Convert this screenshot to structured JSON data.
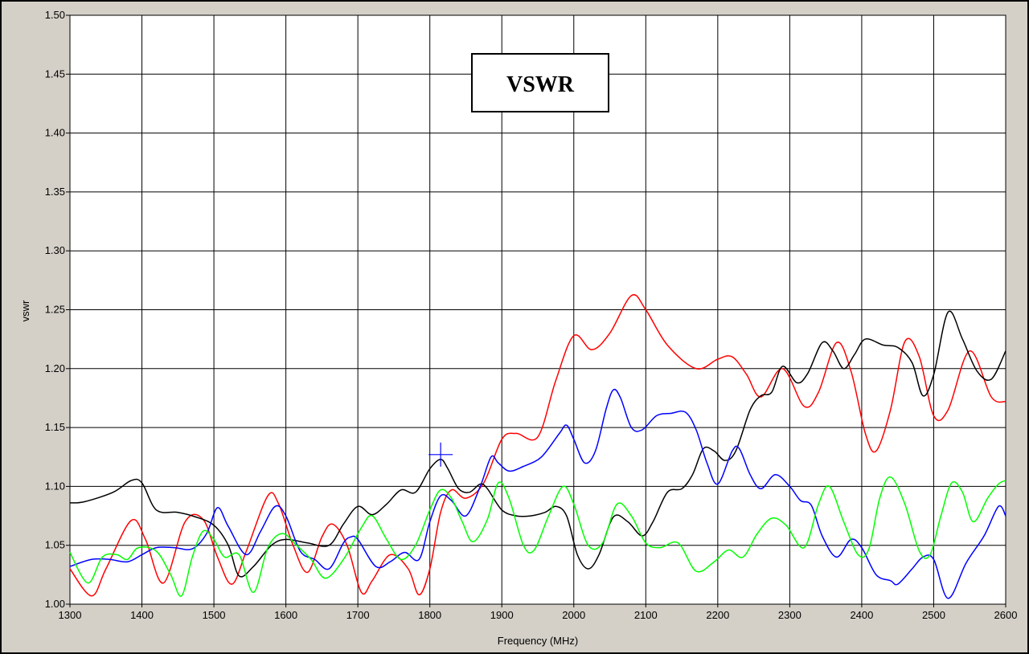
{
  "chart_data": {
    "type": "line",
    "title": "VSWR",
    "xlabel": "Frequency (MHz)",
    "ylabel": "vswr",
    "xlim": [
      1300,
      2600
    ],
    "ylim": [
      1.0,
      1.5
    ],
    "grid": true,
    "xticks": [
      "1300",
      "1400",
      "1500",
      "1600",
      "1700",
      "1800",
      "1900",
      "2000",
      "2100",
      "2200",
      "2300",
      "2400",
      "2500",
      "2600"
    ],
    "yticks": [
      "1.00",
      "1.05",
      "1.10",
      "1.15",
      "1.20",
      "1.25",
      "1.30",
      "1.35",
      "1.40",
      "1.45",
      "1.50"
    ],
    "marker": {
      "x": 1815,
      "y": 1.127,
      "color": "#0000ff"
    },
    "series": [
      {
        "color": "#ff0000",
        "points": [
          [
            1300,
            1.03
          ],
          [
            1330,
            1.007
          ],
          [
            1350,
            1.03
          ],
          [
            1385,
            1.071
          ],
          [
            1405,
            1.055
          ],
          [
            1430,
            1.018
          ],
          [
            1460,
            1.07
          ],
          [
            1485,
            1.072
          ],
          [
            1505,
            1.04
          ],
          [
            1525,
            1.017
          ],
          [
            1545,
            1.045
          ],
          [
            1575,
            1.092
          ],
          [
            1590,
            1.085
          ],
          [
            1610,
            1.05
          ],
          [
            1630,
            1.027
          ],
          [
            1650,
            1.057
          ],
          [
            1665,
            1.068
          ],
          [
            1685,
            1.05
          ],
          [
            1705,
            1.01
          ],
          [
            1720,
            1.02
          ],
          [
            1745,
            1.042
          ],
          [
            1770,
            1.03
          ],
          [
            1785,
            1.008
          ],
          [
            1800,
            1.03
          ],
          [
            1815,
            1.078
          ],
          [
            1830,
            1.097
          ],
          [
            1850,
            1.09
          ],
          [
            1875,
            1.103
          ],
          [
            1900,
            1.14
          ],
          [
            1920,
            1.145
          ],
          [
            1950,
            1.142
          ],
          [
            1975,
            1.19
          ],
          [
            2000,
            1.228
          ],
          [
            2025,
            1.216
          ],
          [
            2050,
            1.23
          ],
          [
            2080,
            1.262
          ],
          [
            2100,
            1.25
          ],
          [
            2130,
            1.22
          ],
          [
            2170,
            1.2
          ],
          [
            2200,
            1.208
          ],
          [
            2220,
            1.21
          ],
          [
            2240,
            1.195
          ],
          [
            2260,
            1.176
          ],
          [
            2290,
            1.2
          ],
          [
            2320,
            1.168
          ],
          [
            2340,
            1.18
          ],
          [
            2365,
            1.222
          ],
          [
            2385,
            1.198
          ],
          [
            2405,
            1.145
          ],
          [
            2420,
            1.13
          ],
          [
            2440,
            1.165
          ],
          [
            2460,
            1.223
          ],
          [
            2480,
            1.21
          ],
          [
            2500,
            1.16
          ],
          [
            2520,
            1.165
          ],
          [
            2550,
            1.215
          ],
          [
            2580,
            1.176
          ],
          [
            2600,
            1.172
          ]
        ]
      },
      {
        "color": "#000000",
        "points": [
          [
            1300,
            1.086
          ],
          [
            1320,
            1.087
          ],
          [
            1360,
            1.095
          ],
          [
            1385,
            1.105
          ],
          [
            1400,
            1.103
          ],
          [
            1420,
            1.08
          ],
          [
            1450,
            1.078
          ],
          [
            1475,
            1.074
          ],
          [
            1500,
            1.067
          ],
          [
            1520,
            1.05
          ],
          [
            1535,
            1.024
          ],
          [
            1555,
            1.032
          ],
          [
            1580,
            1.05
          ],
          [
            1600,
            1.055
          ],
          [
            1630,
            1.052
          ],
          [
            1660,
            1.05
          ],
          [
            1680,
            1.068
          ],
          [
            1700,
            1.083
          ],
          [
            1720,
            1.076
          ],
          [
            1740,
            1.085
          ],
          [
            1760,
            1.097
          ],
          [
            1780,
            1.095
          ],
          [
            1800,
            1.115
          ],
          [
            1815,
            1.123
          ],
          [
            1825,
            1.115
          ],
          [
            1840,
            1.098
          ],
          [
            1855,
            1.095
          ],
          [
            1870,
            1.102
          ],
          [
            1880,
            1.098
          ],
          [
            1900,
            1.08
          ],
          [
            1920,
            1.075
          ],
          [
            1940,
            1.075
          ],
          [
            1960,
            1.078
          ],
          [
            1975,
            1.083
          ],
          [
            1990,
            1.075
          ],
          [
            2005,
            1.042
          ],
          [
            2020,
            1.03
          ],
          [
            2035,
            1.042
          ],
          [
            2055,
            1.074
          ],
          [
            2075,
            1.07
          ],
          [
            2095,
            1.058
          ],
          [
            2110,
            1.07
          ],
          [
            2130,
            1.095
          ],
          [
            2150,
            1.098
          ],
          [
            2165,
            1.11
          ],
          [
            2180,
            1.132
          ],
          [
            2195,
            1.13
          ],
          [
            2210,
            1.122
          ],
          [
            2225,
            1.13
          ],
          [
            2245,
            1.165
          ],
          [
            2260,
            1.177
          ],
          [
            2275,
            1.18
          ],
          [
            2290,
            1.202
          ],
          [
            2310,
            1.188
          ],
          [
            2325,
            1.196
          ],
          [
            2345,
            1.222
          ],
          [
            2360,
            1.215
          ],
          [
            2375,
            1.2
          ],
          [
            2390,
            1.212
          ],
          [
            2405,
            1.225
          ],
          [
            2430,
            1.22
          ],
          [
            2450,
            1.218
          ],
          [
            2470,
            1.205
          ],
          [
            2485,
            1.177
          ],
          [
            2500,
            1.195
          ],
          [
            2520,
            1.248
          ],
          [
            2540,
            1.225
          ],
          [
            2560,
            1.198
          ],
          [
            2580,
            1.191
          ],
          [
            2600,
            1.215
          ]
        ]
      },
      {
        "color": "#0000ff",
        "points": [
          [
            1300,
            1.032
          ],
          [
            1330,
            1.038
          ],
          [
            1355,
            1.038
          ],
          [
            1380,
            1.036
          ],
          [
            1400,
            1.042
          ],
          [
            1420,
            1.048
          ],
          [
            1445,
            1.048
          ],
          [
            1470,
            1.047
          ],
          [
            1490,
            1.06
          ],
          [
            1505,
            1.082
          ],
          [
            1520,
            1.066
          ],
          [
            1545,
            1.042
          ],
          [
            1565,
            1.062
          ],
          [
            1585,
            1.083
          ],
          [
            1600,
            1.075
          ],
          [
            1620,
            1.045
          ],
          [
            1640,
            1.038
          ],
          [
            1660,
            1.03
          ],
          [
            1680,
            1.052
          ],
          [
            1690,
            1.057
          ],
          [
            1700,
            1.055
          ],
          [
            1725,
            1.032
          ],
          [
            1745,
            1.036
          ],
          [
            1765,
            1.044
          ],
          [
            1785,
            1.038
          ],
          [
            1800,
            1.07
          ],
          [
            1815,
            1.092
          ],
          [
            1830,
            1.088
          ],
          [
            1850,
            1.075
          ],
          [
            1870,
            1.1
          ],
          [
            1885,
            1.125
          ],
          [
            1895,
            1.12
          ],
          [
            1910,
            1.113
          ],
          [
            1930,
            1.117
          ],
          [
            1955,
            1.125
          ],
          [
            1980,
            1.145
          ],
          [
            1990,
            1.152
          ],
          [
            2000,
            1.14
          ],
          [
            2015,
            1.12
          ],
          [
            2030,
            1.13
          ],
          [
            2045,
            1.166
          ],
          [
            2055,
            1.182
          ],
          [
            2065,
            1.175
          ],
          [
            2080,
            1.15
          ],
          [
            2095,
            1.148
          ],
          [
            2115,
            1.16
          ],
          [
            2135,
            1.162
          ],
          [
            2155,
            1.163
          ],
          [
            2170,
            1.148
          ],
          [
            2185,
            1.12
          ],
          [
            2200,
            1.102
          ],
          [
            2220,
            1.13
          ],
          [
            2230,
            1.132
          ],
          [
            2245,
            1.11
          ],
          [
            2260,
            1.098
          ],
          [
            2280,
            1.11
          ],
          [
            2300,
            1.1
          ],
          [
            2315,
            1.088
          ],
          [
            2330,
            1.084
          ],
          [
            2345,
            1.058
          ],
          [
            2365,
            1.04
          ],
          [
            2385,
            1.055
          ],
          [
            2400,
            1.048
          ],
          [
            2420,
            1.025
          ],
          [
            2440,
            1.02
          ],
          [
            2450,
            1.017
          ],
          [
            2470,
            1.03
          ],
          [
            2485,
            1.04
          ],
          [
            2500,
            1.038
          ],
          [
            2520,
            1.005
          ],
          [
            2545,
            1.035
          ],
          [
            2570,
            1.058
          ],
          [
            2590,
            1.083
          ],
          [
            2600,
            1.075
          ]
        ]
      },
      {
        "color": "#00ff00",
        "points": [
          [
            1300,
            1.044
          ],
          [
            1325,
            1.018
          ],
          [
            1345,
            1.04
          ],
          [
            1365,
            1.042
          ],
          [
            1380,
            1.038
          ],
          [
            1395,
            1.048
          ],
          [
            1420,
            1.045
          ],
          [
            1440,
            1.025
          ],
          [
            1455,
            1.007
          ],
          [
            1470,
            1.04
          ],
          [
            1485,
            1.062
          ],
          [
            1500,
            1.055
          ],
          [
            1515,
            1.04
          ],
          [
            1535,
            1.042
          ],
          [
            1555,
            1.01
          ],
          [
            1575,
            1.048
          ],
          [
            1595,
            1.06
          ],
          [
            1615,
            1.05
          ],
          [
            1635,
            1.038
          ],
          [
            1655,
            1.022
          ],
          [
            1680,
            1.038
          ],
          [
            1705,
            1.065
          ],
          [
            1720,
            1.075
          ],
          [
            1740,
            1.055
          ],
          [
            1760,
            1.038
          ],
          [
            1780,
            1.05
          ],
          [
            1800,
            1.08
          ],
          [
            1815,
            1.097
          ],
          [
            1830,
            1.09
          ],
          [
            1845,
            1.07
          ],
          [
            1860,
            1.053
          ],
          [
            1880,
            1.072
          ],
          [
            1895,
            1.103
          ],
          [
            1910,
            1.09
          ],
          [
            1930,
            1.05
          ],
          [
            1945,
            1.046
          ],
          [
            1965,
            1.075
          ],
          [
            1985,
            1.1
          ],
          [
            2000,
            1.085
          ],
          [
            2020,
            1.05
          ],
          [
            2040,
            1.052
          ],
          [
            2060,
            1.085
          ],
          [
            2080,
            1.075
          ],
          [
            2100,
            1.052
          ],
          [
            2120,
            1.048
          ],
          [
            2145,
            1.052
          ],
          [
            2170,
            1.028
          ],
          [
            2195,
            1.036
          ],
          [
            2215,
            1.046
          ],
          [
            2235,
            1.04
          ],
          [
            2255,
            1.06
          ],
          [
            2275,
            1.073
          ],
          [
            2295,
            1.067
          ],
          [
            2320,
            1.048
          ],
          [
            2340,
            1.085
          ],
          [
            2355,
            1.1
          ],
          [
            2375,
            1.07
          ],
          [
            2395,
            1.042
          ],
          [
            2410,
            1.047
          ],
          [
            2425,
            1.09
          ],
          [
            2440,
            1.108
          ],
          [
            2460,
            1.085
          ],
          [
            2480,
            1.045
          ],
          [
            2495,
            1.042
          ],
          [
            2510,
            1.075
          ],
          [
            2525,
            1.103
          ],
          [
            2540,
            1.095
          ],
          [
            2555,
            1.07
          ],
          [
            2575,
            1.09
          ],
          [
            2590,
            1.102
          ],
          [
            2600,
            1.105
          ]
        ]
      }
    ]
  }
}
